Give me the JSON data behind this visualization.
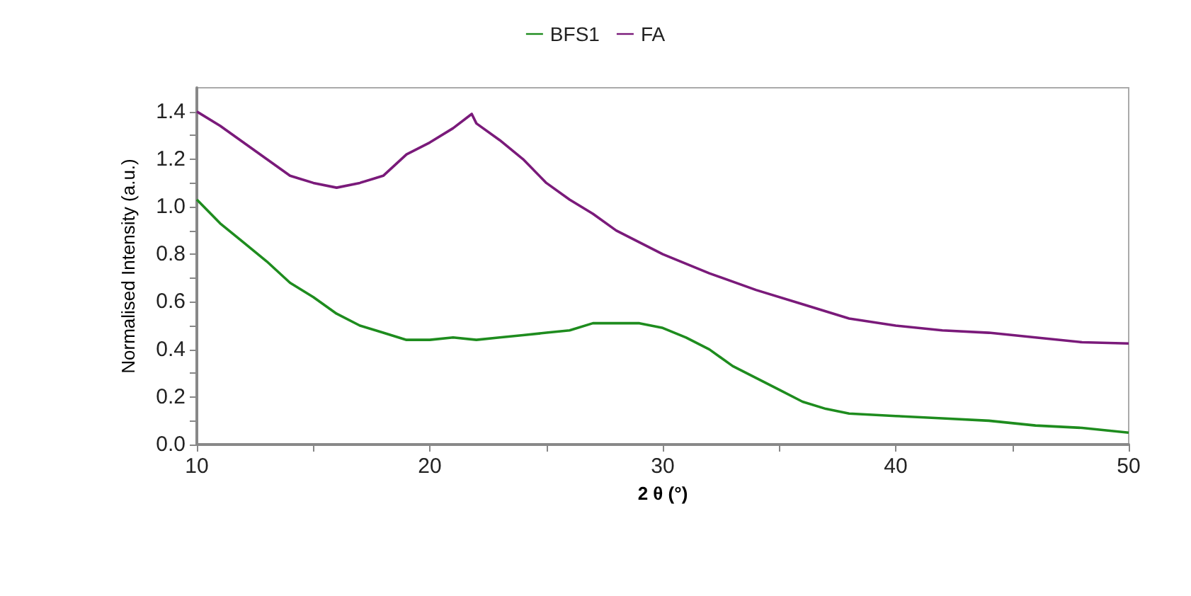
{
  "chart_data": {
    "type": "line",
    "xlabel": "2 θ (°)",
    "ylabel": "Normalised Intensity (a.u.)",
    "legend": "top",
    "grid": false,
    "marker": "none",
    "line_style": "solid",
    "xlim": [
      10,
      50
    ],
    "xticks": [
      10,
      {
        "value": 15,
        "label": null
      },
      20,
      {
        "value": 25,
        "label": null
      },
      30,
      {
        "value": 35,
        "label": null
      },
      40,
      {
        "value": 45,
        "label": null
      },
      50
    ],
    "ylim": [
      0,
      1.5
    ],
    "yticks": [
      {
        "value": 0,
        "label": "0.0"
      },
      {
        "value": 0.1,
        "label": null
      },
      {
        "value": 0.2,
        "label": "0.2"
      },
      {
        "value": 0.3,
        "label": null
      },
      {
        "value": 0.4,
        "label": "0.4"
      },
      {
        "value": 0.5,
        "label": null
      },
      {
        "value": 0.6,
        "label": "0.6"
      },
      {
        "value": 0.7,
        "label": null
      },
      {
        "value": 0.8,
        "label": "0.8"
      },
      {
        "value": 0.9,
        "label": null
      },
      {
        "value": 1.0,
        "label": "1.0"
      },
      {
        "value": 1.1,
        "label": null
      },
      {
        "value": 1.2,
        "label": "1.2"
      },
      {
        "value": 1.3,
        "label": null
      },
      {
        "value": 1.4,
        "label": "1.4"
      }
    ],
    "series": [
      {
        "name": "BFS1",
        "color": "#1e8c1e",
        "x": [
          10,
          11,
          12,
          13,
          14,
          15,
          16,
          17,
          18,
          19,
          20,
          21,
          22,
          23,
          24,
          25,
          26,
          27,
          28,
          29,
          30,
          31,
          32,
          33,
          34,
          35,
          36,
          37,
          38,
          40,
          42,
          44,
          46,
          48,
          50
        ],
        "values": [
          1.03,
          0.93,
          0.85,
          0.77,
          0.68,
          0.62,
          0.55,
          0.5,
          0.47,
          0.44,
          0.44,
          0.45,
          0.44,
          0.45,
          0.46,
          0.47,
          0.48,
          0.51,
          0.51,
          0.51,
          0.49,
          0.45,
          0.4,
          0.33,
          0.28,
          0.23,
          0.18,
          0.15,
          0.13,
          0.12,
          0.11,
          0.1,
          0.08,
          0.07,
          0.05
        ]
      },
      {
        "name": "FA",
        "color": "#7a1a7a",
        "x": [
          10,
          11,
          12,
          13,
          14,
          15,
          16,
          17,
          18,
          19,
          20,
          21,
          21.8,
          22,
          23,
          24,
          25,
          26,
          27,
          28,
          29,
          30,
          32,
          34,
          36,
          38,
          40,
          42,
          44,
          46,
          48,
          50
        ],
        "values": [
          1.4,
          1.34,
          1.27,
          1.2,
          1.13,
          1.1,
          1.08,
          1.1,
          1.13,
          1.22,
          1.27,
          1.33,
          1.39,
          1.35,
          1.28,
          1.2,
          1.1,
          1.03,
          0.97,
          0.9,
          0.85,
          0.8,
          0.72,
          0.65,
          0.59,
          0.53,
          0.5,
          0.48,
          0.47,
          0.45,
          0.43,
          0.425
        ]
      }
    ]
  }
}
